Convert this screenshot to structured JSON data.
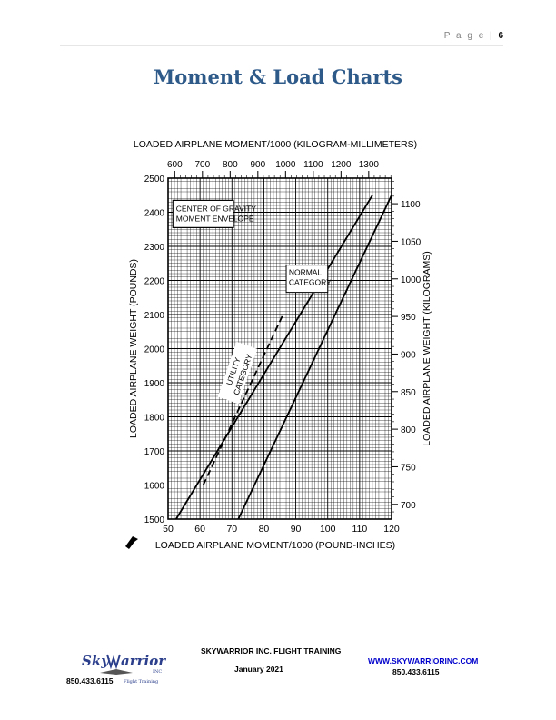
{
  "header": {
    "page_label": "P a g e",
    "separator": "|",
    "page_number": "6"
  },
  "title": "Moment & Load Charts",
  "chart_data": {
    "type": "line",
    "title": "",
    "top_axis_label": "LOADED AIRPLANE MOMENT/1000 (KILOGRAM-MILLIMETERS)",
    "top_ticks": [
      "600",
      "700",
      "800",
      "900",
      "1000",
      "1100",
      "1200",
      "1300"
    ],
    "bottom_axis_label": "LOADED AIRPLANE MOMENT/1000 (POUND-INCHES)",
    "x_ticks": [
      "50",
      "60",
      "70",
      "80",
      "90",
      "100",
      "110",
      "120"
    ],
    "xlim": [
      50,
      120
    ],
    "left_axis_label": "LOADED AIRPLANE WEIGHT (POUNDS)",
    "y_ticks": [
      "1500",
      "1600",
      "1700",
      "1800",
      "1900",
      "2000",
      "2100",
      "2200",
      "2300",
      "2400",
      "2500"
    ],
    "ylim": [
      1500,
      2500
    ],
    "right_axis_label": "LOADED AIRPLANE WEIGHT (KILOGRAMS)",
    "right_ticks": [
      "700",
      "750",
      "800",
      "850",
      "900",
      "950",
      "1000",
      "1050",
      "1100"
    ],
    "grid": true,
    "annotations": {
      "envelope_line1": "CENTER OF GRAVITY",
      "envelope_line2": "MOMENT ENVELOPE",
      "normal_line1": "NORMAL",
      "normal_line2": "CATEGORY",
      "utility_line1": "UTILITY",
      "utility_line2": "CATEGORY"
    },
    "series": [
      {
        "name": "forward limit",
        "style": "solid",
        "points": [
          [
            52.5,
            1500
          ],
          [
            114,
            2450
          ]
        ]
      },
      {
        "name": "utility aft limit",
        "style": "dashed",
        "points": [
          [
            61,
            1600
          ],
          [
            86,
            2100
          ]
        ]
      },
      {
        "name": "aft limit",
        "style": "solid",
        "points": [
          [
            72,
            1500
          ],
          [
            120,
            2450
          ]
        ]
      }
    ]
  },
  "footer": {
    "logo_text_1": "Sky",
    "logo_text_2": "arrior",
    "logo_inc": "INC",
    "logo_tagline": "Flight Training",
    "company": "SKYWARRIOR INC. FLIGHT TRAINING",
    "date": "January 2021",
    "url": "WWW.SKYWARRIORINC.COM",
    "phone_right": "850.433.6115",
    "phone_left": "850.433.6115"
  }
}
